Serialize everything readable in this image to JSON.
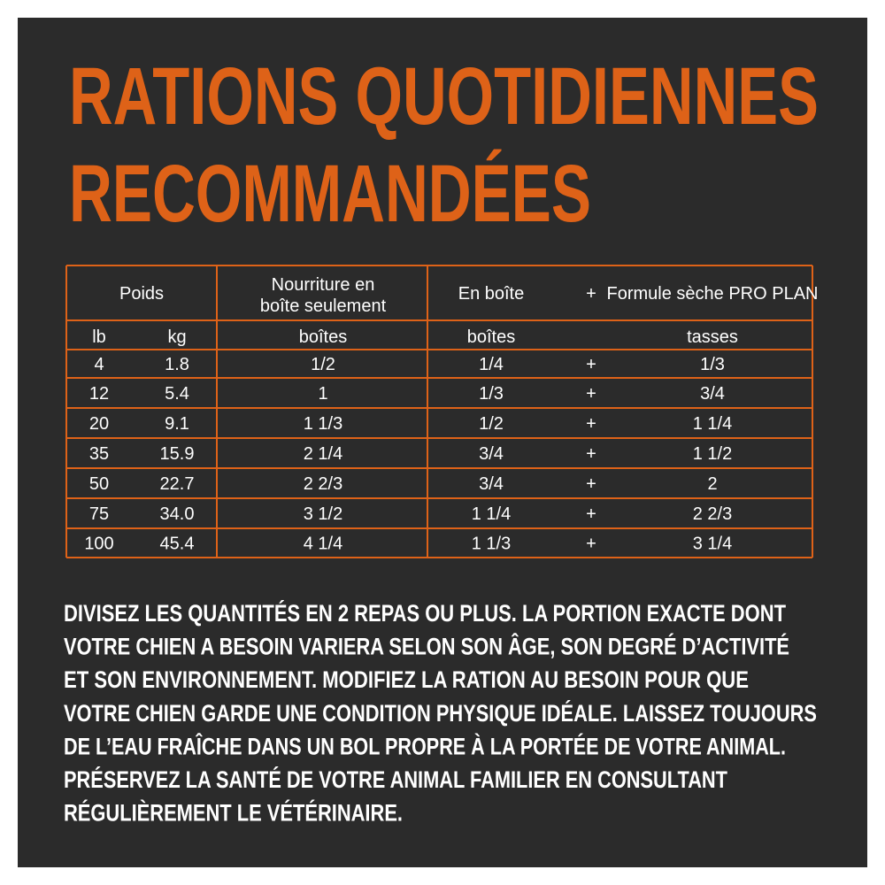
{
  "title": [
    "RATIONS QUOTIDIENNES",
    "RECOMMANDÉES"
  ],
  "table": {
    "header": {
      "weight": "Poids",
      "canned_only": [
        "Nourriture en",
        "boîte seulement"
      ],
      "canned": "En boîte",
      "plus": "+",
      "dry": "Formule sèche PRO PLAN"
    },
    "units": [
      "lb",
      "kg",
      "boîtes",
      "boîtes",
      "tasses"
    ],
    "rows": [
      [
        "4",
        "1.8",
        "1/2",
        "1/4",
        "+",
        "1/3"
      ],
      [
        "12",
        "5.4",
        "1",
        "1/3",
        "+",
        "3/4"
      ],
      [
        "20",
        "9.1",
        "1 1/3",
        "1/2",
        "+",
        "1 1/4"
      ],
      [
        "35",
        "15.9",
        "2 1/4",
        "3/4",
        "+",
        "1 1/2"
      ],
      [
        "50",
        "22.7",
        "2 2/3",
        "3/4",
        "+",
        "2"
      ],
      [
        "75",
        "34.0",
        "3 1/2",
        "1 1/4",
        "+",
        "2 2/3"
      ],
      [
        "100",
        "45.4",
        "4 1/4",
        "1 1/3",
        "+",
        "3 1/4"
      ]
    ]
  },
  "paragraph": [
    "DIVISEZ LES QUANTITÉS EN 2 REPAS OU PLUS. LA PORTION EXACTE DONT",
    "VOTRE CHIEN A BESOIN VARIERA SELON SON ÂGE, SON DEGRÉ D’ACTIVITÉ",
    "ET SON ENVIRONNEMENT. MODIFIEZ LA RATION AU BESOIN POUR QUE",
    "VOTRE CHIEN GARDE UNE CONDITION PHYSIQUE IDÉALE. LAISSEZ TOUJOURS",
    "DE L’EAU FRAÎCHE DANS UN BOL PROPRE À LA PORTÉE DE VOTRE ANIMAL.",
    "PRÉSERVEZ LA SANTÉ DE VOTRE ANIMAL FAMILIER EN CONSULTANT",
    "RÉGULIÈREMENT LE VÉTÉRINAIRE."
  ]
}
